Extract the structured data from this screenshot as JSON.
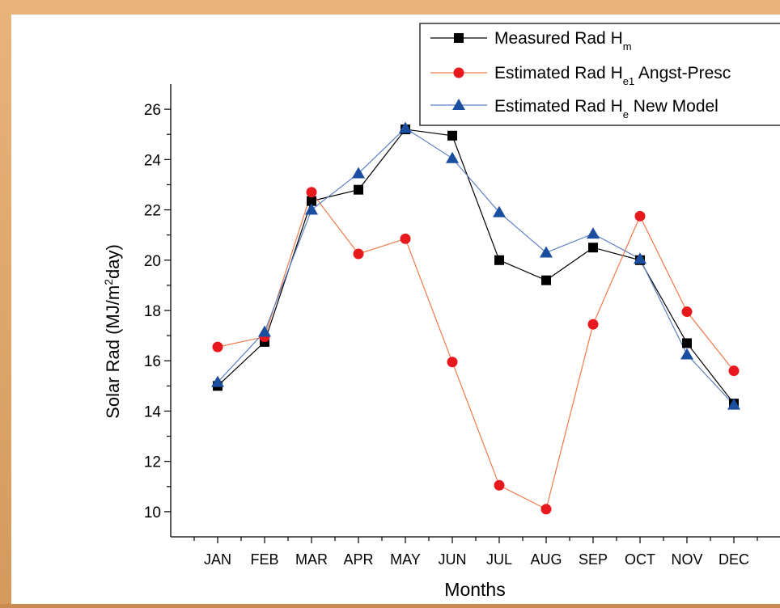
{
  "chart_data": {
    "type": "line",
    "categories": [
      "JAN",
      "FEB",
      "MAR",
      "APR",
      "MAY",
      "JUN",
      "JUL",
      "AUG",
      "SEP",
      "OCT",
      "NOV",
      "DEC"
    ],
    "xlabel": "Months",
    "ylabel": {
      "prefix": "Solar Rad (MJ/m",
      "sup": "2",
      "suffix": "day)"
    },
    "ylim": [
      9,
      27
    ],
    "yticks": [
      10,
      12,
      14,
      16,
      18,
      20,
      22,
      24,
      26
    ],
    "legend": {
      "position": "top-right"
    },
    "series": [
      {
        "key": "measured",
        "name_main": "Measured Rad H",
        "name_sub": "m",
        "name_rest": "",
        "color": "#000000",
        "marker": "square",
        "values": [
          15.0,
          16.75,
          22.35,
          22.8,
          25.2,
          24.95,
          20.0,
          19.2,
          20.5,
          20.0,
          16.7,
          14.3
        ]
      },
      {
        "key": "angstrom",
        "name_main": "Estimated Rad H",
        "name_sub": "e1",
        "name_rest": " Angst-Presc",
        "color": "#e8191c",
        "line_color": "#f07a4a",
        "marker": "circle",
        "values": [
          16.55,
          16.95,
          22.7,
          20.25,
          20.85,
          15.95,
          11.05,
          10.1,
          17.45,
          21.75,
          17.95,
          15.6
        ]
      },
      {
        "key": "new_model",
        "name_main": "Estimated Rad H",
        "name_sub": "e",
        "name_rest": " New Model",
        "color": "#1a4fa0",
        "line_color": "#5d7fc2",
        "marker": "triangle",
        "values": [
          15.15,
          17.15,
          22.0,
          23.45,
          25.25,
          24.05,
          21.9,
          20.3,
          21.05,
          20.05,
          16.25,
          14.25
        ]
      }
    ]
  }
}
